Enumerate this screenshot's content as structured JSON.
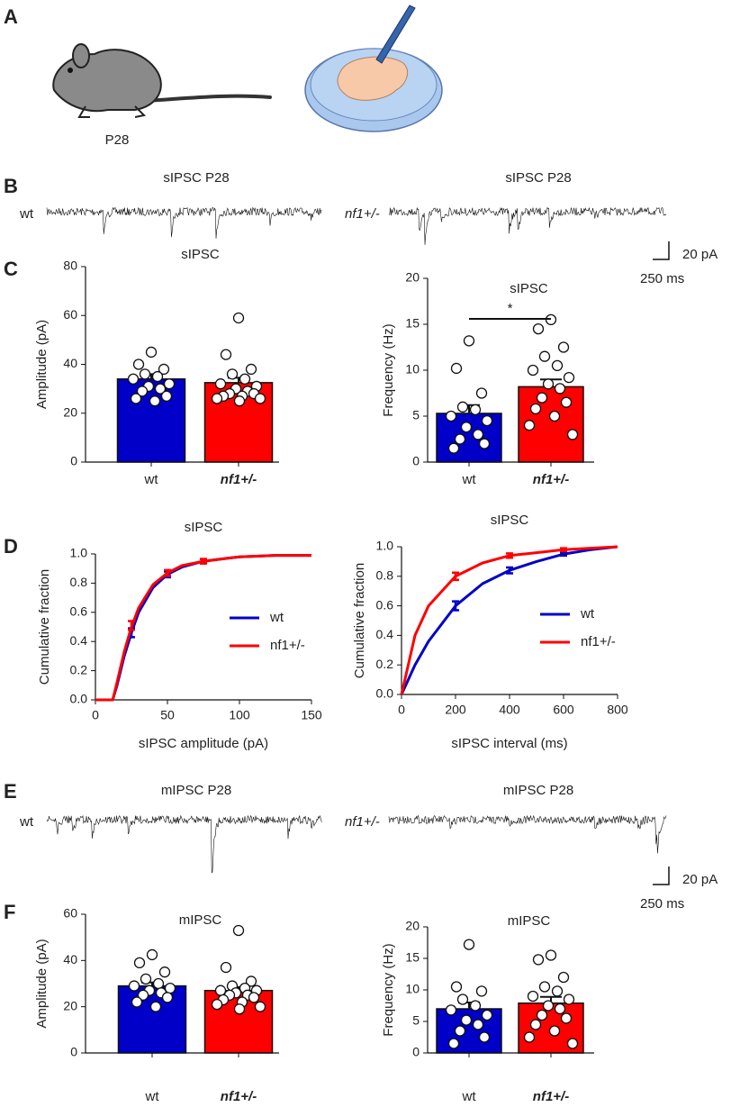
{
  "panel_labels": [
    "A",
    "B",
    "C",
    "D",
    "E",
    "F"
  ],
  "illustration": {
    "age": "P28"
  },
  "traces": [
    {
      "title": "sIPSC P28",
      "genotypes": [
        "wt",
        "nf1+/-"
      ],
      "scale_bar": [
        "20 pA",
        "250 ms"
      ]
    },
    {
      "title": "mIPSC P28",
      "genotypes": [
        "wt",
        "nf1+/-"
      ],
      "scale_bar": [
        "20 pA",
        "250 ms"
      ]
    }
  ],
  "chart_data": [
    {
      "type": "bar",
      "title": "sIPSC",
      "ylabel": "Amplitude (pA)",
      "categories": [
        "wt",
        "nf1+/-"
      ],
      "values": [
        34,
        32.5
      ],
      "errors": [
        2,
        2
      ],
      "colors": [
        "#0000c8",
        "#ff0000"
      ],
      "points": [
        [
          45,
          40,
          38,
          36,
          35,
          34,
          32,
          31,
          30,
          29,
          27,
          26,
          25
        ],
        [
          59,
          44,
          38,
          36,
          34,
          32,
          31,
          30,
          29,
          28,
          28,
          27,
          27,
          26,
          26,
          25
        ]
      ],
      "ylim": [
        0,
        80
      ],
      "yticks": [
        0,
        20,
        40,
        60,
        80
      ]
    },
    {
      "type": "bar",
      "title": "sIPSC",
      "ylabel": "Frequency (Hz)",
      "categories": [
        "wt",
        "nf1+/-"
      ],
      "values": [
        5.3,
        8.2
      ],
      "errors": [
        0.9,
        0.8
      ],
      "colors": [
        "#0000c8",
        "#ff0000"
      ],
      "points": [
        [
          13.2,
          10.2,
          7.5,
          6,
          5.7,
          5,
          4.5,
          3.8,
          3,
          2.5,
          2,
          1.5
        ],
        [
          15.5,
          14.5,
          12.5,
          11.5,
          10.5,
          10,
          9.2,
          8.5,
          8,
          7,
          6.5,
          5.8,
          5,
          4,
          3
        ]
      ],
      "significance": "*",
      "ylim": [
        0,
        20
      ],
      "yticks": [
        0,
        5,
        10,
        15,
        20
      ]
    },
    {
      "type": "line",
      "title": "sIPSC",
      "xlabel": "sIPSC amplitude (pA)",
      "ylabel": "Cumulative fraction",
      "xlim": [
        0,
        150
      ],
      "xticks": [
        0,
        50,
        100,
        150
      ],
      "ylim": [
        0,
        1
      ],
      "yticks": [
        {
          "value": 0,
          "label": "0.0"
        },
        0.2,
        0.4,
        0.6,
        0.8,
        {
          "value": 1,
          "label": "1.0"
        }
      ],
      "series": [
        {
          "name": "wt",
          "color": "#0000c8",
          "x": [
            0,
            12,
            15,
            20,
            25,
            30,
            40,
            50,
            60,
            75,
            100,
            125,
            150
          ],
          "values": [
            0,
            0,
            0.1,
            0.3,
            0.46,
            0.6,
            0.77,
            0.86,
            0.91,
            0.95,
            0.98,
            0.99,
            0.99
          ],
          "marker_x": [
            25,
            50,
            75
          ],
          "marker_values": [
            0.46,
            0.86,
            0.95
          ],
          "marker_errors": [
            0.03,
            0.02,
            0.015
          ]
        },
        {
          "name": "nf1+/-",
          "color": "#ff0000",
          "x": [
            0,
            12,
            15,
            20,
            25,
            30,
            40,
            50,
            60,
            75,
            100,
            125,
            150
          ],
          "values": [
            0,
            0,
            0.12,
            0.33,
            0.5,
            0.63,
            0.79,
            0.87,
            0.92,
            0.95,
            0.98,
            0.99,
            0.99
          ],
          "marker_x": [
            25,
            50,
            75
          ],
          "marker_values": [
            0.51,
            0.87,
            0.95
          ],
          "marker_errors": [
            0.03,
            0.02,
            0.015
          ]
        }
      ]
    },
    {
      "type": "line",
      "title": "sIPSC",
      "xlabel": "sIPSC interval (ms)",
      "ylabel": "Cumulative fraction",
      "xlim": [
        0,
        800
      ],
      "xticks": [
        0,
        200,
        400,
        600,
        800
      ],
      "ylim": [
        0,
        1
      ],
      "yticks": [
        {
          "value": 0,
          "label": "0.0"
        },
        0.2,
        0.4,
        0.6,
        0.8,
        {
          "value": 1,
          "label": "1.0"
        }
      ],
      "series": [
        {
          "name": "wt",
          "color": "#0000c8",
          "x": [
            0,
            50,
            100,
            200,
            300,
            400,
            500,
            600,
            700,
            800
          ],
          "values": [
            0,
            0.2,
            0.36,
            0.6,
            0.75,
            0.84,
            0.9,
            0.95,
            0.98,
            1
          ],
          "marker_x": [
            200,
            400,
            600
          ],
          "marker_values": [
            0.6,
            0.84,
            0.95
          ],
          "marker_errors": [
            0.03,
            0.02,
            0.01
          ]
        },
        {
          "name": "nf1+/-",
          "color": "#ff0000",
          "x": [
            0,
            50,
            100,
            200,
            300,
            400,
            500,
            600,
            700,
            800
          ],
          "values": [
            0,
            0.4,
            0.6,
            0.8,
            0.89,
            0.94,
            0.96,
            0.98,
            0.99,
            1
          ],
          "marker_x": [
            200,
            400,
            600
          ],
          "marker_values": [
            0.8,
            0.94,
            0.98
          ],
          "marker_errors": [
            0.025,
            0.015,
            0.01
          ]
        }
      ]
    },
    {
      "type": "bar",
      "title": "mIPSC",
      "ylabel": "Amplitude (pA)",
      "categories": [
        "wt",
        "nf1+/-"
      ],
      "values": [
        29,
        27
      ],
      "errors": [
        1.5,
        1.5
      ],
      "colors": [
        "#0000c8",
        "#ff0000"
      ],
      "points": [
        [
          42.5,
          39,
          35,
          32,
          30,
          29,
          28,
          27,
          26,
          25,
          24,
          22,
          20
        ],
        [
          53,
          37,
          31,
          29,
          28,
          27,
          27,
          26,
          25,
          25,
          24,
          23,
          22,
          21,
          20,
          19
        ]
      ],
      "ylim": [
        0,
        60
      ],
      "yticks": [
        0,
        20,
        40,
        60
      ]
    },
    {
      "type": "bar",
      "title": "mIPSC",
      "ylabel": "Frequency (Hz)",
      "categories": [
        "wt",
        "nf1+/-"
      ],
      "values": [
        7,
        7.9
      ],
      "errors": [
        1,
        1
      ],
      "colors": [
        "#0000c8",
        "#ff0000"
      ],
      "points": [
        [
          17.2,
          10.5,
          9.8,
          8.5,
          7.5,
          6.8,
          6,
          5.2,
          4.5,
          3.5,
          2.5,
          1.5
        ],
        [
          15.5,
          14.8,
          12,
          10.5,
          9.8,
          9,
          8.5,
          7.5,
          7,
          6,
          5.5,
          4.5,
          3.5,
          2.5,
          1.5
        ]
      ],
      "ylim": [
        0,
        20
      ],
      "yticks": [
        0,
        5,
        10,
        15,
        20
      ]
    }
  ]
}
